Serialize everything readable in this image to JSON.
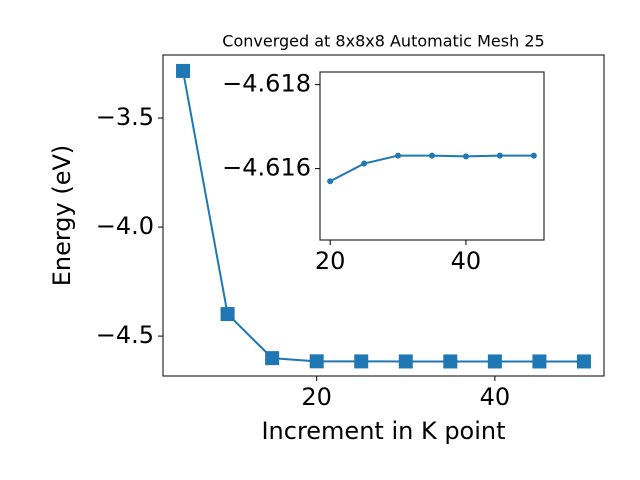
{
  "chart_data": [
    {
      "type": "line",
      "title": "Converged at 8x8x8 Automatic Mesh 25",
      "x_label": "Increment in K point",
      "y_label": "Energy (eV)",
      "x": [
        5,
        10,
        15,
        20,
        25,
        30,
        35,
        40,
        45,
        50
      ],
      "series": [
        {
          "color": "#1f77b4",
          "marker": "square",
          "values": [
            -3.284,
            -4.399,
            -4.601,
            -4.6157,
            -4.6161,
            -4.6163,
            -4.6163,
            -4.6163,
            -4.6163,
            -4.6163
          ]
        }
      ],
      "xlim": [
        2.75,
        52.25
      ],
      "ylim": [
        -4.683,
        -3.211
      ],
      "xticks": [
        20,
        40
      ],
      "yticks": [
        {
          "value": -3.5,
          "label": "−3.5"
        },
        {
          "value": -4.0,
          "label": "−4.0"
        },
        {
          "value": -4.5,
          "label": "−4.5"
        }
      ]
    },
    {
      "type": "line",
      "x": [
        20,
        25,
        30,
        35,
        40,
        45,
        50
      ],
      "series": [
        {
          "color": "#1f77b4",
          "marker": "circle",
          "values": [
            -4.6157,
            -4.61612,
            -4.61631,
            -4.61631,
            -4.61629,
            -4.61631,
            -4.61631
          ]
        }
      ],
      "xlim": [
        18.5,
        51.5
      ],
      "ylim": [
        -4.6143,
        -4.6183
      ],
      "xticks": [
        20,
        40
      ],
      "yticks": [
        {
          "value": -4.618,
          "label": "−4.618"
        },
        {
          "value": -4.616,
          "label": "−4.616"
        }
      ]
    }
  ]
}
